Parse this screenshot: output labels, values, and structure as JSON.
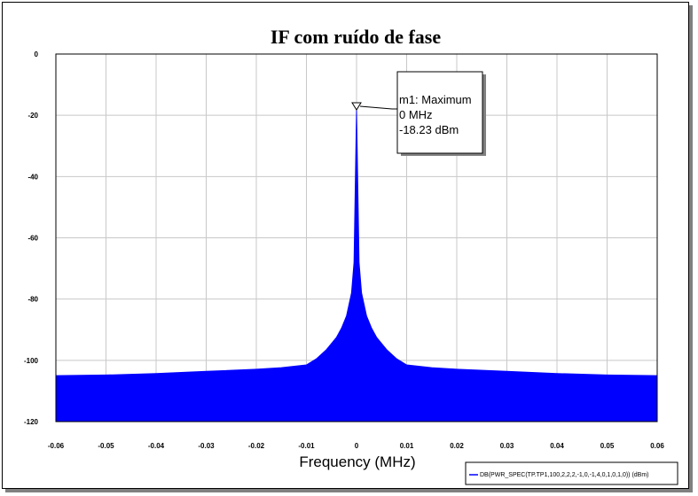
{
  "chart_data": {
    "type": "area",
    "title": "IF com ruído de fase",
    "xlabel": "Frequency (MHz)",
    "ylabel": "",
    "xlim": [
      -0.06,
      0.06
    ],
    "ylim": [
      -120,
      0
    ],
    "x_ticks": [
      "-0.06",
      "-0.05",
      "-0.04",
      "-0.03",
      "-0.02",
      "-0.01",
      "0",
      "0.01",
      "0.02",
      "0.03",
      "0.04",
      "0.05",
      "0.06"
    ],
    "y_ticks": [
      "0",
      "-20",
      "-40",
      "-60",
      "-80",
      "-100",
      "-120"
    ],
    "grid": true,
    "series": [
      {
        "name": "DB(PWR_SPEC(TP.TP1,100,2,2,2,-1,0,-1,4,0,1,0,1,0)) (dBm)",
        "color": "#0000ff",
        "x": [
          -0.06,
          -0.05,
          -0.04,
          -0.03,
          -0.02,
          -0.015,
          -0.01,
          -0.008,
          -0.006,
          -0.004,
          -0.003,
          -0.002,
          -0.001,
          -0.0005,
          0,
          0.0005,
          0.001,
          0.002,
          0.003,
          0.004,
          0.006,
          0.008,
          0.01,
          0.015,
          0.02,
          0.03,
          0.04,
          0.05,
          0.06
        ],
        "y": [
          -105,
          -104.8,
          -104.3,
          -103.6,
          -102.9,
          -102.4,
          -101.5,
          -99.5,
          -96.5,
          -92.5,
          -89.5,
          -85.5,
          -78,
          -68,
          -18.23,
          -68,
          -78,
          -85.5,
          -89.5,
          -92.5,
          -96.5,
          -99.5,
          -101.5,
          -102.4,
          -102.9,
          -103.6,
          -104.3,
          -104.8,
          -105
        ]
      }
    ],
    "marker": {
      "label": "m1: Maximum",
      "x_text": "0 MHz",
      "y_text": "-18.23 dBm",
      "x": 0,
      "y": -18.23
    },
    "legend": {
      "position": "bottom-right",
      "entry": "DB(PWR_SPEC(TP.TP1,100,2,2,2,-1,0,-1,4,0,1,0,1,0)) (dBm)"
    }
  }
}
